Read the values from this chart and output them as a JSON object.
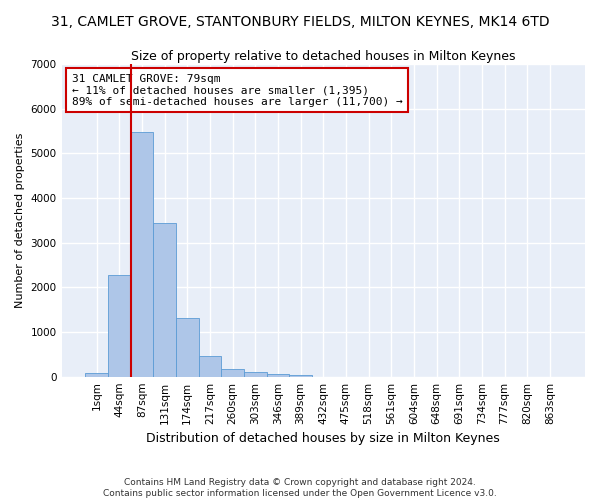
{
  "title": "31, CAMLET GROVE, STANTONBURY FIELDS, MILTON KEYNES, MK14 6TD",
  "subtitle": "Size of property relative to detached houses in Milton Keynes",
  "xlabel": "Distribution of detached houses by size in Milton Keynes",
  "ylabel": "Number of detached properties",
  "footnote1": "Contains HM Land Registry data © Crown copyright and database right 2024.",
  "footnote2": "Contains public sector information licensed under the Open Government Licence v3.0.",
  "bar_labels": [
    "1sqm",
    "44sqm",
    "87sqm",
    "131sqm",
    "174sqm",
    "217sqm",
    "260sqm",
    "303sqm",
    "346sqm",
    "389sqm",
    "432sqm",
    "475sqm",
    "518sqm",
    "561sqm",
    "604sqm",
    "648sqm",
    "691sqm",
    "734sqm",
    "777sqm",
    "820sqm",
    "863sqm"
  ],
  "bar_values": [
    80,
    2270,
    5480,
    3450,
    1320,
    470,
    170,
    100,
    60,
    35,
    0,
    0,
    0,
    0,
    0,
    0,
    0,
    0,
    0,
    0,
    0
  ],
  "bar_color": "#aec6e8",
  "bar_edge_color": "#5b9bd5",
  "ylim": [
    0,
    7000
  ],
  "yticks": [
    0,
    1000,
    2000,
    3000,
    4000,
    5000,
    6000,
    7000
  ],
  "property_label": "31 CAMLET GROVE: 79sqm",
  "annotation_line1": "← 11% of detached houses are smaller (1,395)",
  "annotation_line2": "89% of semi-detached houses are larger (11,700) →",
  "vline_color": "#cc0000",
  "bg_color": "#e8eef8",
  "grid_color": "#ffffff",
  "title_fontsize": 10,
  "subtitle_fontsize": 9,
  "xlabel_fontsize": 9,
  "ylabel_fontsize": 8,
  "tick_fontsize": 7.5,
  "footnote_fontsize": 6.5
}
